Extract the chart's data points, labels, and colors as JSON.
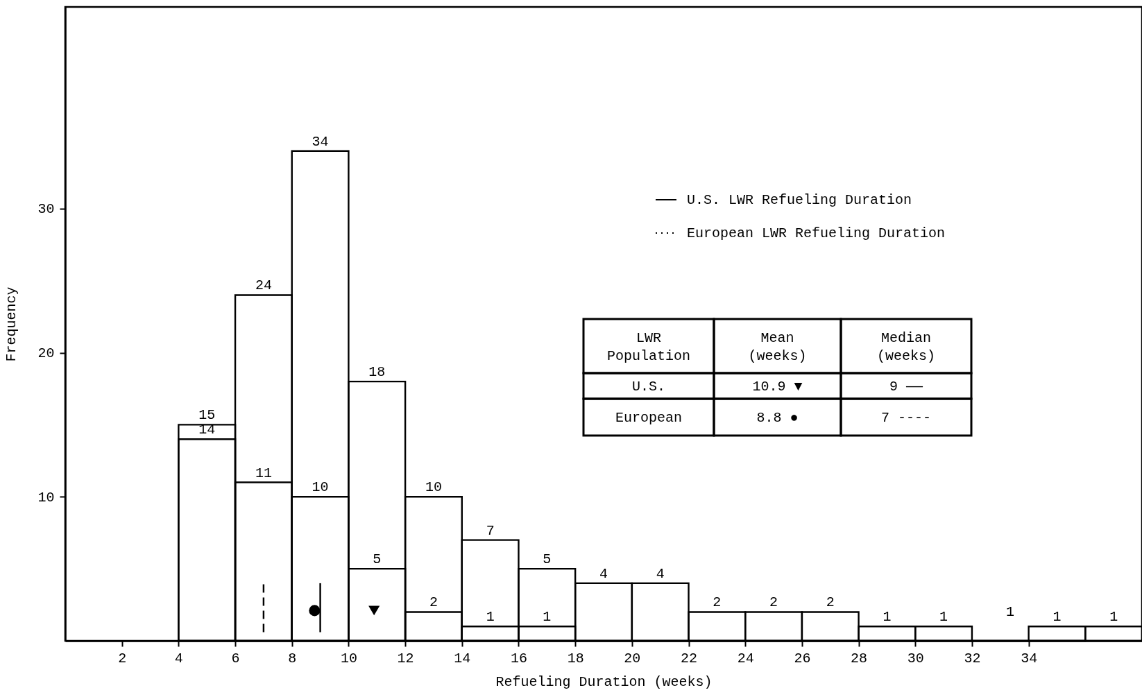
{
  "chart_data": {
    "type": "histogram",
    "xlabel": "Refueling Duration (weeks)",
    "ylabel": "Frequency",
    "xlim": [
      0,
      38
    ],
    "ylim": [
      0,
      44
    ],
    "xticks": [
      2,
      4,
      6,
      8,
      10,
      12,
      14,
      16,
      18,
      20,
      22,
      24,
      26,
      28,
      30,
      32,
      34
    ],
    "yticks": [
      10,
      20,
      30
    ],
    "legend": "top right",
    "series": [
      {
        "name": "U.S. LWR Refueling Duration",
        "color": "#000000",
        "line_style": "solid",
        "bins": [
          4,
          6,
          8,
          10,
          12,
          14,
          16,
          18,
          20,
          22,
          24,
          26,
          28,
          30,
          32,
          34,
          36
        ],
        "values": [
          14,
          24,
          34,
          18,
          10,
          7,
          5,
          4,
          4,
          2,
          2,
          2,
          1,
          0,
          0,
          1
        ],
        "value_labels": [
          "14",
          "24",
          "34",
          "18",
          "10",
          "7",
          "5",
          "4",
          "4",
          "2",
          "2",
          "2",
          "1",
          null,
          null,
          "1"
        ]
      },
      {
        "name": "European LWR Refueling Duration",
        "color": "#000000",
        "line_style": "dotted",
        "bins": [
          4,
          6,
          8,
          10,
          12,
          14,
          16,
          18,
          20,
          22,
          24,
          26,
          28,
          30,
          32,
          34,
          36,
          38
        ],
        "values": [
          15,
          11,
          10,
          5,
          2,
          1,
          1,
          0,
          0,
          0,
          0,
          0,
          0,
          1,
          0,
          0,
          1
        ],
        "value_labels": [
          "15",
          "11",
          "10",
          "5",
          "2",
          "1",
          "1",
          null,
          null,
          null,
          null,
          null,
          null,
          "1",
          null,
          null,
          "1"
        ]
      },
      {
        "type": "scatter",
        "color": "#000000",
        "marker": "triangle",
        "x": [
          10.9
        ],
        "values": [
          2.1
        ]
      },
      {
        "type": "scatter",
        "color": "#000000",
        "marker": "circle",
        "x": [
          8.8
        ],
        "values": [
          2.1
        ]
      },
      {
        "type": "line",
        "color": "#000000",
        "line_style": "solid",
        "x": [
          9,
          9
        ],
        "values": [
          0.6,
          4.0
        ]
      },
      {
        "type": "line",
        "color": "#000000",
        "line_style": "dashed",
        "x": [
          7,
          7
        ],
        "values": [
          0.6,
          4.0
        ]
      }
    ],
    "annotations": [
      "1",
      "LWR Population",
      "Mean (weeks)",
      "Median (weeks)",
      "U.S.",
      "10.9 ▼",
      "9 ——",
      "European",
      "8.8 ●",
      "7 ----"
    ]
  }
}
